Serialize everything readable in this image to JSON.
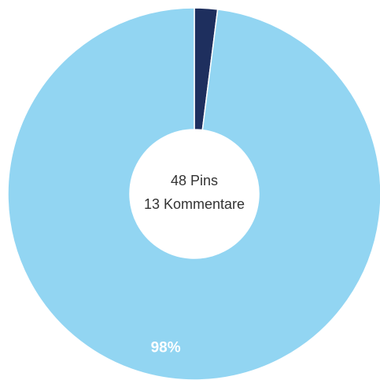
{
  "chart_data": {
    "type": "donut",
    "categories": [
      null,
      null
    ],
    "values": [
      2,
      98
    ],
    "value_labels": [
      null,
      "98%"
    ],
    "colors": [
      "#1e2f5e",
      "#92d5f2"
    ],
    "center_labels": [
      "48 Pins",
      "13 Kommentare"
    ]
  }
}
